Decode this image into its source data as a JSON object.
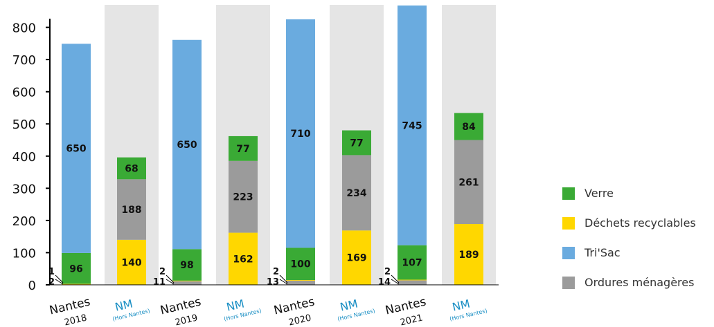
{
  "chart_data": {
    "type": "bar",
    "stacked": true,
    "title": "",
    "xlabel": "",
    "ylabel": "",
    "ylim": [
      0,
      870
    ],
    "y_ticks": [
      "0",
      "100",
      "200",
      "300",
      "400",
      "500",
      "600",
      "700",
      "800"
    ],
    "grid": false,
    "legend_position": "right",
    "categories": [
      {
        "name": "Nantes",
        "sub": "2018",
        "type": "nantes"
      },
      {
        "name": "NM",
        "sub": "(Hors Nantes)",
        "type": "nm"
      },
      {
        "name": "Nantes",
        "sub": "2019",
        "type": "nantes"
      },
      {
        "name": "NM",
        "sub": "(Hors Nantes)",
        "type": "nm"
      },
      {
        "name": "Nantes",
        "sub": "2020",
        "type": "nantes"
      },
      {
        "name": "NM",
        "sub": "(Hors Nantes)",
        "type": "nm"
      },
      {
        "name": "Nantes",
        "sub": "2021",
        "type": "nantes"
      },
      {
        "name": "NM",
        "sub": "(Hors Nantes)",
        "type": "nm"
      }
    ],
    "series": [
      {
        "name": "Ordures ménagères",
        "color": "#9b9b9b",
        "values": [
          2,
          188,
          11,
          223,
          13,
          234,
          14,
          261
        ]
      },
      {
        "name": "Déchets recyclables",
        "color": "#ffd700",
        "values": [
          1,
          140,
          2,
          162,
          2,
          169,
          2,
          189
        ]
      },
      {
        "name": "Verre",
        "color": "#3aaa35",
        "values": [
          96,
          68,
          98,
          77,
          100,
          77,
          107,
          84
        ]
      },
      {
        "name": "Tri'Sac",
        "color": "#6aabdf",
        "values": [
          650,
          0,
          650,
          0,
          710,
          0,
          745,
          0
        ]
      }
    ],
    "nm_order": [
      "Déchets recyclables",
      "Ordures ménagères",
      "Verre"
    ],
    "value_labels": [
      {
        "cat": 0,
        "series": "Tri'Sac",
        "text": "650"
      },
      {
        "cat": 0,
        "series": "Verre",
        "text": "96"
      },
      {
        "cat": 2,
        "series": "Tri'Sac",
        "text": "650"
      },
      {
        "cat": 2,
        "series": "Verre",
        "text": "98"
      },
      {
        "cat": 4,
        "series": "Tri'Sac",
        "text": "710"
      },
      {
        "cat": 4,
        "series": "Verre",
        "text": "100"
      },
      {
        "cat": 6,
        "series": "Tri'Sac",
        "text": "745"
      },
      {
        "cat": 6,
        "series": "Verre",
        "text": "107"
      },
      {
        "cat": 1,
        "series": "Verre",
        "text": "68"
      },
      {
        "cat": 1,
        "series": "Ordures ménagères",
        "text": "188"
      },
      {
        "cat": 1,
        "series": "Déchets recyclables",
        "text": "140"
      },
      {
        "cat": 3,
        "series": "Verre",
        "text": "77"
      },
      {
        "cat": 3,
        "series": "Ordures ménagères",
        "text": "223"
      },
      {
        "cat": 3,
        "series": "Déchets recyclables",
        "text": "162"
      },
      {
        "cat": 5,
        "series": "Verre",
        "text": "77"
      },
      {
        "cat": 5,
        "series": "Ordures ménagères",
        "text": "234"
      },
      {
        "cat": 5,
        "series": "Déchets recyclables",
        "text": "169"
      },
      {
        "cat": 7,
        "series": "Verre",
        "text": "84"
      },
      {
        "cat": 7,
        "series": "Ordures ménagères",
        "text": "261"
      },
      {
        "cat": 7,
        "series": "Déchets recyclables",
        "text": "189"
      }
    ],
    "callouts": [
      {
        "cat": 0,
        "top": "1",
        "bottom": "2"
      },
      {
        "cat": 2,
        "top": "2",
        "bottom": "11"
      },
      {
        "cat": 4,
        "top": "2",
        "bottom": "13"
      },
      {
        "cat": 6,
        "top": "2",
        "bottom": "14"
      }
    ],
    "colors": {
      "nm_background": "#e5e5e5",
      "nm_label": "#1a8fc4",
      "axis": "#000000",
      "text": "#111111"
    }
  },
  "legend": {
    "items": [
      {
        "label": "Verre",
        "color": "#3aaa35"
      },
      {
        "label": "Déchets recyclables",
        "color": "#ffd700"
      },
      {
        "label": "Tri'Sac",
        "color": "#6aabdf"
      },
      {
        "label": "Ordures ménagères",
        "color": "#9b9b9b"
      }
    ]
  }
}
